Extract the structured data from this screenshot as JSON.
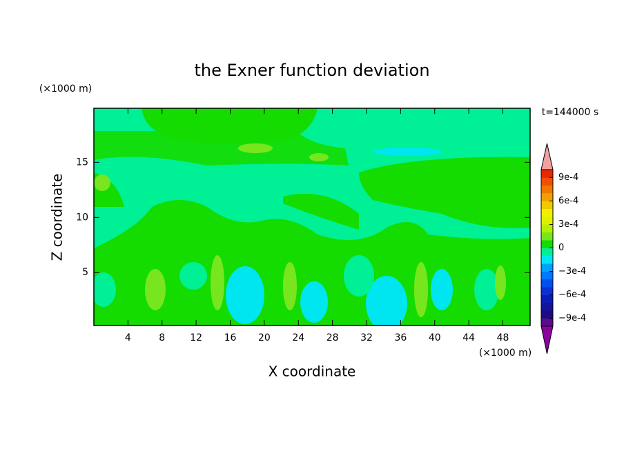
{
  "chart_data": {
    "type": "contour",
    "title": "the Exner function deviation",
    "x_label": "X coordinate",
    "y_label": "Z coordinate",
    "x_unit": "(×1000 m)",
    "y_unit": "(×1000 m)",
    "annotation": "t=144000 s",
    "xlim": [
      0,
      51.2
    ],
    "xticks": [
      4,
      8,
      12,
      16,
      20,
      24,
      28,
      32,
      36,
      40,
      44,
      48
    ],
    "ylim": [
      0.2,
      19.9
    ],
    "yticks": [
      5,
      10,
      15
    ],
    "colorbar": {
      "clim": [
        -0.001,
        0.001
      ],
      "ticks": [
        {
          "value": 0.0009,
          "label": "9e-4"
        },
        {
          "value": 0.0006,
          "label": "6e-4"
        },
        {
          "value": 0.0003,
          "label": "3e-4"
        },
        0,
        {
          "value": -0.0003,
          "label": "−3e-4"
        },
        {
          "value": -0.0006,
          "label": "−6e-4"
        },
        {
          "value": -0.0009,
          "label": "−9e-4"
        }
      ],
      "colors": [
        "#5a0a8c",
        "#1e0a82",
        "#14149c",
        "#0a1eb4",
        "#0a32d2",
        "#0050f0",
        "#0078ff",
        "#00a0ff",
        "#00e6f0",
        "#00f096",
        "#14dc00",
        "#78e61e",
        "#b4f000",
        "#dcf000",
        "#f0f000",
        "#f0c800",
        "#f0a000",
        "#f07800",
        "#f05000",
        "#e62800"
      ],
      "under_color": "#8c00a0",
      "over_color": "#f0a0a0"
    }
  }
}
